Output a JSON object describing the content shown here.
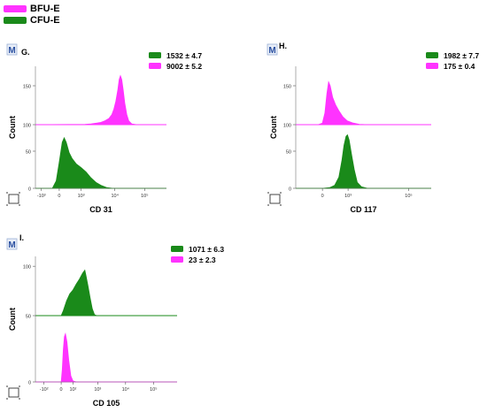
{
  "legend": {
    "items": [
      {
        "label": "BFU-E",
        "color": "#ff33ff"
      },
      {
        "label": "CFU-E",
        "color": "#1a8a1a"
      }
    ]
  },
  "chart_data": [
    {
      "type": "area",
      "panel": "G.",
      "badge": "M",
      "xlabel": "CD 31",
      "ylabel": "Count",
      "x_ticks": [
        "-10³",
        "0",
        "10³",
        "10⁴",
        "10⁵"
      ],
      "stats": [
        {
          "text": "1532 ± 4.7",
          "color": "#1a8a1a"
        },
        {
          "text": "9002 ± 5.2",
          "color": "#ff33ff"
        }
      ],
      "series": [
        {
          "name": "BFU-E",
          "color": "#ff33ff",
          "y_ticks": [
            100,
            150
          ],
          "ylim": [
            100,
            175
          ],
          "points": [
            [
              -1.3,
              100
            ],
            [
              1.2,
              100.5
            ],
            [
              1.5,
              101
            ],
            [
              1.8,
              102
            ],
            [
              2.0,
              103
            ],
            [
              2.2,
              105
            ],
            [
              2.4,
              108
            ],
            [
              2.55,
              113
            ],
            [
              2.65,
              120
            ],
            [
              2.75,
              130
            ],
            [
              2.85,
              145
            ],
            [
              2.92,
              158
            ],
            [
              2.98,
              163
            ],
            [
              3.05,
              158
            ],
            [
              3.12,
              145
            ],
            [
              3.2,
              128
            ],
            [
              3.3,
              113
            ],
            [
              3.4,
              105
            ],
            [
              3.55,
              101
            ],
            [
              3.8,
              100
            ],
            [
              5.3,
              100
            ]
          ]
        },
        {
          "name": "CFU-E",
          "color": "#1a8a1a",
          "y_ticks": [
            0,
            50
          ],
          "ylim": [
            0,
            75
          ],
          "points": [
            [
              -1.3,
              0
            ],
            [
              -0.45,
              0
            ],
            [
              -0.25,
              10
            ],
            [
              -0.1,
              35
            ],
            [
              0.05,
              62
            ],
            [
              0.15,
              68
            ],
            [
              0.25,
              62
            ],
            [
              0.4,
              48
            ],
            [
              0.55,
              40
            ],
            [
              0.75,
              33
            ],
            [
              1.0,
              28
            ],
            [
              1.25,
              22
            ],
            [
              1.5,
              14
            ],
            [
              1.75,
              8
            ],
            [
              2.0,
              4
            ],
            [
              2.3,
              1
            ],
            [
              2.6,
              0
            ],
            [
              5.3,
              0
            ]
          ]
        }
      ]
    },
    {
      "type": "area",
      "panel": "H.",
      "badge": "M",
      "xlabel": "CD 117",
      "ylabel": "Count",
      "x_ticks": [
        "0",
        "10³",
        "10⁵"
      ],
      "stats": [
        {
          "text": "1982 ± 7.7",
          "color": "#1a8a1a"
        },
        {
          "text": "175 ± 0.4",
          "color": "#ff33ff"
        }
      ],
      "series": [
        {
          "name": "BFU-E",
          "color": "#ff33ff",
          "y_ticks": [
            100,
            150
          ],
          "ylim": [
            100,
            175
          ],
          "points": [
            [
              -1.3,
              100
            ],
            [
              -0.2,
              100
            ],
            [
              0.0,
              102
            ],
            [
              0.12,
              115
            ],
            [
              0.22,
              140
            ],
            [
              0.3,
              155
            ],
            [
              0.38,
              150
            ],
            [
              0.5,
              135
            ],
            [
              0.65,
              125
            ],
            [
              0.8,
              118
            ],
            [
              1.0,
              110
            ],
            [
              1.2,
              105
            ],
            [
              1.5,
              102
            ],
            [
              1.8,
              100.5
            ],
            [
              2.2,
              100
            ],
            [
              5.3,
              100
            ]
          ]
        },
        {
          "name": "CFU-E",
          "color": "#1a8a1a",
          "y_ticks": [
            0,
            50
          ],
          "ylim": [
            0,
            75
          ],
          "points": [
            [
              -1.3,
              0
            ],
            [
              0.0,
              0
            ],
            [
              0.35,
              1
            ],
            [
              0.6,
              4
            ],
            [
              0.8,
              15
            ],
            [
              0.95,
              38
            ],
            [
              1.05,
              58
            ],
            [
              1.15,
              70
            ],
            [
              1.22,
              72
            ],
            [
              1.3,
              65
            ],
            [
              1.42,
              45
            ],
            [
              1.55,
              25
            ],
            [
              1.7,
              8
            ],
            [
              1.9,
              2
            ],
            [
              2.2,
              0
            ],
            [
              5.3,
              0
            ]
          ]
        }
      ]
    },
    {
      "type": "area",
      "panel": "I.",
      "badge": "M",
      "xlabel": "CD 105",
      "ylabel": "Count",
      "x_ticks": [
        "-10²",
        "0",
        "10²",
        "10³",
        "10⁴",
        "10⁵"
      ],
      "stats": [
        {
          "text": "1071 ± 6.3",
          "color": "#1a8a1a"
        },
        {
          "text": "23 ± 2.3",
          "color": "#ff33ff"
        }
      ],
      "series": [
        {
          "name": "CFU-E",
          "color": "#1a8a1a",
          "y_ticks": [
            50,
            100
          ],
          "ylim": [
            50,
            110
          ],
          "points": [
            [
              -1.3,
              50
            ],
            [
              -0.1,
              50
            ],
            [
              0.0,
              55
            ],
            [
              0.15,
              65
            ],
            [
              0.3,
              72
            ],
            [
              0.45,
              76
            ],
            [
              0.6,
              82
            ],
            [
              0.75,
              87
            ],
            [
              0.9,
              93
            ],
            [
              1.0,
              96
            ],
            [
              1.05,
              91
            ],
            [
              1.15,
              80
            ],
            [
              1.25,
              68
            ],
            [
              1.35,
              57
            ],
            [
              1.45,
              51
            ],
            [
              1.55,
              50
            ],
            [
              5.3,
              50
            ]
          ]
        },
        {
          "name": "BFU-E",
          "color": "#ff33ff",
          "y_ticks": [
            0
          ],
          "ylim": [
            0,
            60
          ],
          "points": [
            [
              -1.3,
              0
            ],
            [
              -0.1,
              0
            ],
            [
              -0.05,
              12
            ],
            [
              0.0,
              32
            ],
            [
              0.05,
              45
            ],
            [
              0.1,
              48
            ],
            [
              0.17,
              40
            ],
            [
              0.25,
              22
            ],
            [
              0.35,
              6
            ],
            [
              0.45,
              1
            ],
            [
              0.6,
              0
            ],
            [
              5.3,
              0
            ]
          ]
        }
      ]
    }
  ]
}
